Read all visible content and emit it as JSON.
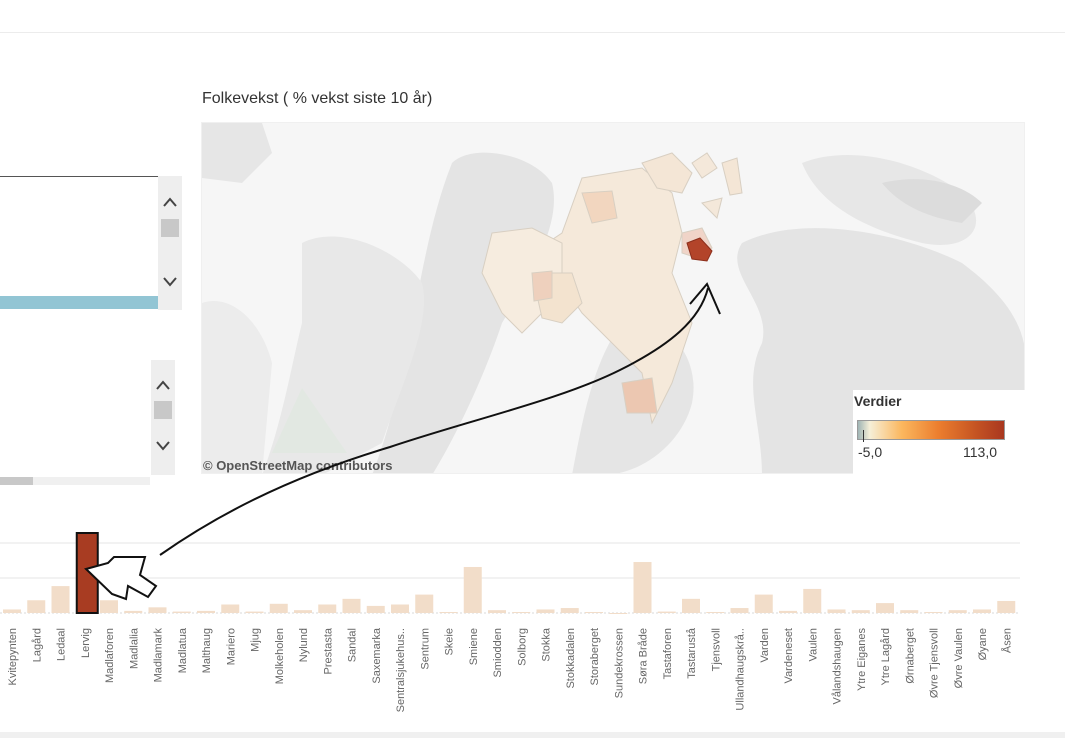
{
  "map": {
    "title": "Folkevekst ( % vekst siste 10 år)",
    "attribution": "© OpenStreetMap contributors",
    "legend": {
      "title": "Verdier",
      "min_label": "-5,0",
      "max_label": "113,0",
      "colors": [
        "#9fb4b4",
        "#f6efd8",
        "#fbb75e",
        "#ec7e2e",
        "#c65523",
        "#a9371f"
      ]
    }
  },
  "filters": {
    "panel1": {
      "scroll_up": "up-chevron-icon",
      "scroll_down": "down-chevron-icon"
    },
    "panel2": {
      "scroll_up": "up-chevron-icon",
      "scroll_down": "down-chevron-icon"
    }
  },
  "colors": {
    "selected_row": "#92c5d4",
    "bar_default": "#f2ddc9",
    "bar_highlight": "#a83c22",
    "gridline": "#e6e6e6"
  },
  "chart_data": {
    "type": "bar",
    "categories": [
      "Kvitepynten",
      "Lagård",
      "Ledaal",
      "Lervig",
      "Madlaforen",
      "Madlalia",
      "Madlamark",
      "Madlatua",
      "Malthaug",
      "Mariero",
      "Mjug",
      "Molkeholen",
      "Nylund",
      "Prestasta",
      "Sandal",
      "Saxemarka",
      "Sentralsjukehus..",
      "Sentrum",
      "Skeie",
      "Smiene",
      "Smiodden",
      "Solborg",
      "Stokka",
      "Stokkadalen",
      "Storaberget",
      "Sundekrossen",
      "Søra Bråde",
      "Tastaforen",
      "Tastarustå",
      "Tjensvoll",
      "Ullandhaugskrå..",
      "Varden",
      "Vardeneset",
      "Vaulen",
      "Vålandshaugen",
      "Ytre Eiganes",
      "Ytre Lagård",
      "Ørnaberget",
      "Øvre Tjensvoll",
      "Øvre Vaulen",
      "Øyane",
      "Åsen"
    ],
    "values": [
      5,
      18,
      38,
      113,
      18,
      3,
      8,
      2,
      3,
      12,
      2,
      13,
      4,
      12,
      20,
      10,
      12,
      26,
      1,
      65,
      4,
      1,
      5,
      7,
      1,
      -1,
      72,
      2,
      20,
      1,
      7,
      26,
      3,
      34,
      5,
      4,
      14,
      4,
      1,
      4,
      5,
      17
    ],
    "highlight": "Lervig",
    "xlabel": "",
    "ylabel": "",
    "ylim": [
      -5,
      120
    ],
    "grid": true
  }
}
